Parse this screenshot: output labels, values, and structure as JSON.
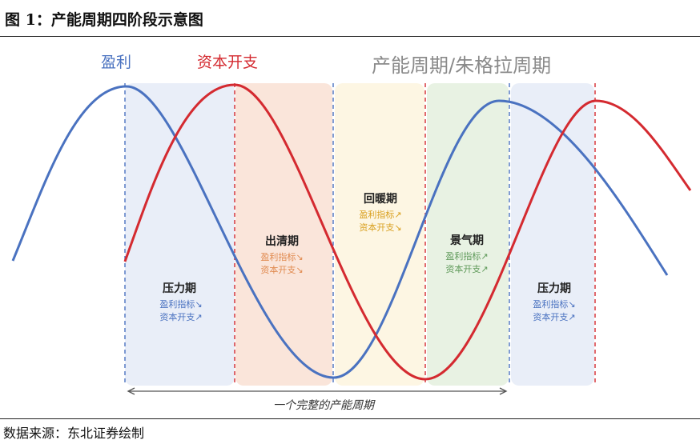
{
  "figure": {
    "title": "图 1：产能周期四阶段示意图",
    "source": "数据来源：东北证券绘制"
  },
  "diagram": {
    "legend_profit": "盈利",
    "legend_capex": "资本开支",
    "heading": "产能周期/朱格拉周期",
    "span_label": "一个完整的产能周期",
    "colors": {
      "profit": "#4a72c0",
      "capex": "#d42a30",
      "pressure_fill": "#e9eef8",
      "clearing_fill": "#fae5da",
      "recovery_fill": "#fdf6e3",
      "boom_fill": "#e8f2e3",
      "indicator_blue": "#4a72c0",
      "indicator_orange": "#e08a4f",
      "indicator_gold": "#d9a020",
      "indicator_green": "#5f9a5a"
    },
    "phases": [
      {
        "name": "压力期",
        "profit_indicator": "盈利指标↘",
        "capex_indicator": "资本开支↗"
      },
      {
        "name": "出清期",
        "profit_indicator": "盈利指标↘",
        "capex_indicator": "资本开支↘"
      },
      {
        "name": "回暖期",
        "profit_indicator": "盈利指标↗",
        "capex_indicator": "资本开支↘"
      },
      {
        "name": "景气期",
        "profit_indicator": "盈利指标↗",
        "capex_indicator": "资本开支↗"
      },
      {
        "name": "压力期",
        "profit_indicator": "盈利指标↘",
        "capex_indicator": "资本开支↗"
      }
    ]
  }
}
